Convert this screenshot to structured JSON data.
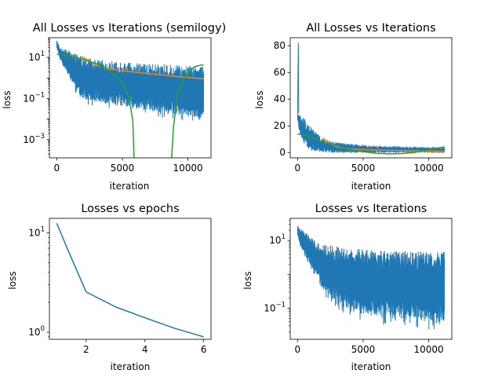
{
  "figure": {
    "background": "#ffffff"
  },
  "chart_data": [
    {
      "id": "top-left",
      "type": "line",
      "title": "All Losses vs Iterations (semilogy)",
      "xlabel": "iteration",
      "ylabel": "loss",
      "xscale": "linear",
      "yscale": "log",
      "xlim": [
        -560,
        11760
      ],
      "ylim": [
        0.00013,
        90
      ],
      "xticks": [
        0,
        5000,
        10000
      ],
      "xtick_labels": [
        "0",
        "5000",
        "10000"
      ],
      "yticks": [
        0.001,
        0.1,
        10
      ],
      "ytick_labels": [
        {
          "base": "10",
          "exp": "−3"
        },
        {
          "base": "10",
          "exp": "−1"
        },
        {
          "base": "10",
          "exp": "1"
        }
      ],
      "grid": false,
      "legend": "none",
      "series": [
        {
          "color": "#1f77b4",
          "kind": "noisy-envelope",
          "x": [
            0,
            200,
            500,
            1000,
            1500,
            2000,
            3000,
            4000,
            5000,
            6000,
            7000,
            8000,
            9000,
            10000,
            11200
          ],
          "upper": [
            70,
            30,
            25,
            20,
            14,
            10,
            7.5,
            6.5,
            5.5,
            5,
            4.7,
            4.4,
            4.2,
            4,
            3.8
          ],
          "lower": [
            25,
            8,
            3,
            0.5,
            0.12,
            0.06,
            0.04,
            0.03,
            0.025,
            0.02,
            0.015,
            0.012,
            0.01,
            0.008,
            0.006
          ]
        },
        {
          "color": "#ff7f0e",
          "x": [
            1900,
            2500,
            3000,
            4000,
            5000,
            6000,
            7000,
            8000,
            9000,
            10000,
            11200
          ],
          "y": [
            11,
            6.5,
            4.2,
            2.8,
            2.2,
            1.9,
            1.6,
            1.4,
            1.2,
            1.05,
            0.9
          ]
        },
        {
          "color": "#2ca02c",
          "x": [
            0,
            500,
            1000,
            2000,
            3000,
            4000,
            5000,
            5500,
            5800,
            5900,
            6500,
            7500,
            8500,
            8750,
            8900,
            9200,
            9600,
            10000,
            10500,
            11000,
            11200
          ],
          "y": [
            14,
            13,
            11.5,
            8,
            5,
            2.3,
            0.6,
            0.12,
            0.008,
            0.0001,
            0.0001,
            0.0001,
            0.0001,
            0.0001,
            0.004,
            0.15,
            0.7,
            1.8,
            3.5,
            4.2,
            4.3
          ]
        }
      ]
    },
    {
      "id": "top-right",
      "type": "line",
      "title": "All Losses vs Iterations",
      "xlabel": "iteration",
      "ylabel": "loss",
      "xscale": "linear",
      "yscale": "linear",
      "xlim": [
        -560,
        11760
      ],
      "ylim": [
        -4,
        86
      ],
      "xticks": [
        0,
        5000,
        10000
      ],
      "xtick_labels": [
        "0",
        "5000",
        "10000"
      ],
      "yticks": [
        0,
        20,
        40,
        60,
        80
      ],
      "ytick_labels": [
        "0",
        "20",
        "40",
        "60",
        "80"
      ],
      "grid": false,
      "legend": "none",
      "series": [
        {
          "color": "#1f77b4",
          "kind": "noisy-envelope",
          "spike": {
            "x": 60,
            "y": 82
          },
          "x": [
            0,
            200,
            500,
            1000,
            1500,
            2000,
            3000,
            4000,
            5000,
            6000,
            7000,
            8000,
            9000,
            10000,
            11200
          ],
          "upper": [
            30,
            28,
            26,
            20,
            14,
            10,
            7.5,
            6.5,
            5.5,
            5,
            4.7,
            4.4,
            4.2,
            4,
            3.8
          ],
          "lower": [
            25,
            12,
            6,
            1,
            0.2,
            0.1,
            0.05,
            0.03,
            0.025,
            0.02,
            0.015,
            0.012,
            0.01,
            0.008,
            0.006
          ]
        },
        {
          "color": "#ff7f0e",
          "x": [
            1900,
            2500,
            3000,
            4000,
            5000,
            6000,
            7000,
            8000,
            9000,
            10000,
            11200
          ],
          "y": [
            11,
            6.5,
            4.2,
            2.8,
            2.2,
            1.9,
            1.6,
            1.4,
            1.2,
            1.05,
            0.9
          ]
        },
        {
          "color": "#2ca02c",
          "x": [
            0,
            500,
            1000,
            2000,
            3000,
            4000,
            5000,
            6000,
            7000,
            8000,
            9000,
            10000,
            11200
          ],
          "y": [
            14,
            13,
            11.5,
            8,
            5,
            2.3,
            0.6,
            -0.6,
            -1.0,
            -0.8,
            0.2,
            2.0,
            4.3
          ]
        }
      ]
    },
    {
      "id": "bottom-left",
      "type": "line",
      "title": "Losses vs epochs",
      "xlabel": "iteration",
      "ylabel": "loss",
      "xscale": "linear",
      "yscale": "log",
      "xlim": [
        0.75,
        6.25
      ],
      "ylim": [
        0.85,
        14
      ],
      "xticks": [
        2,
        4,
        6
      ],
      "xtick_labels": [
        "2",
        "4",
        "6"
      ],
      "yticks": [
        1,
        10
      ],
      "ytick_labels": [
        {
          "base": "10",
          "exp": "0"
        },
        {
          "base": "10",
          "exp": "1"
        }
      ],
      "grid": false,
      "legend": "none",
      "series": [
        {
          "color": "#1f77b4",
          "x": [
            1,
            1.4,
            2,
            3,
            4,
            5,
            6
          ],
          "y": [
            12.5,
            6.5,
            2.55,
            1.8,
            1.4,
            1.1,
            0.9
          ]
        }
      ]
    },
    {
      "id": "bottom-right",
      "type": "line",
      "title": "Losses vs Iterations",
      "xlabel": "iteration",
      "ylabel": "loss",
      "xscale": "linear",
      "yscale": "log",
      "xlim": [
        -560,
        11760
      ],
      "ylim": [
        0.012,
        45
      ],
      "xticks": [
        0,
        5000,
        10000
      ],
      "xtick_labels": [
        "0",
        "5000",
        "10000"
      ],
      "yticks": [
        0.1,
        10
      ],
      "ytick_labels": [
        {
          "base": "10",
          "exp": "−1"
        },
        {
          "base": "10",
          "exp": "1"
        }
      ],
      "grid": false,
      "legend": "none",
      "series": [
        {
          "color": "#1f77b4",
          "kind": "noisy-envelope",
          "x": [
            0,
            200,
            500,
            1000,
            1500,
            2000,
            3000,
            4000,
            5000,
            6000,
            7000,
            8000,
            9000,
            10000,
            11200
          ],
          "upper": [
            28,
            22,
            18,
            12,
            9,
            7.5,
            6.5,
            6,
            5.5,
            5.2,
            5,
            5,
            4.8,
            4.6,
            4.5
          ],
          "lower": [
            12,
            6,
            3,
            1.2,
            0.6,
            0.2,
            0.08,
            0.05,
            0.04,
            0.035,
            0.03,
            0.028,
            0.025,
            0.022,
            0.02
          ]
        }
      ]
    }
  ]
}
